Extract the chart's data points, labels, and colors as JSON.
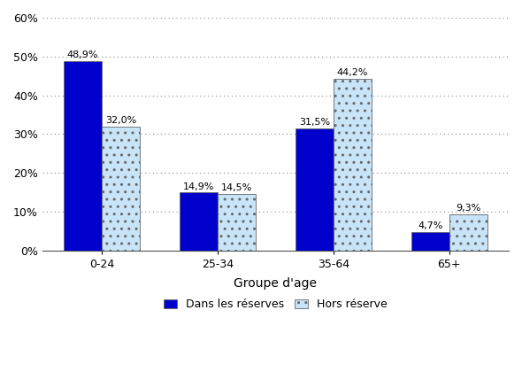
{
  "categories": [
    "0-24",
    "25-34",
    "35-64",
    "65+"
  ],
  "series": [
    {
      "label": "Dans les réserves",
      "values": [
        48.9,
        14.9,
        31.5,
        4.7
      ],
      "color": "#0000CC",
      "hatch": ""
    },
    {
      "label": "Hors réserve",
      "values": [
        32.0,
        14.5,
        44.2,
        9.3
      ],
      "color": "#C8E4F8",
      "hatch": ".."
    }
  ],
  "xlabel": "Groupe d'age",
  "ylabel": "",
  "ylim": [
    0,
    60
  ],
  "yticks": [
    0,
    10,
    20,
    30,
    40,
    50,
    60
  ],
  "ytick_labels": [
    "0%",
    "10%",
    "20%",
    "30%",
    "40%",
    "50%",
    "60%"
  ],
  "bar_width": 0.33,
  "background_color": "#FFFFFF",
  "grid_color": "#888888",
  "font_size": 9,
  "label_font_size": 8,
  "xlabel_font_size": 10,
  "legend_font_size": 9
}
